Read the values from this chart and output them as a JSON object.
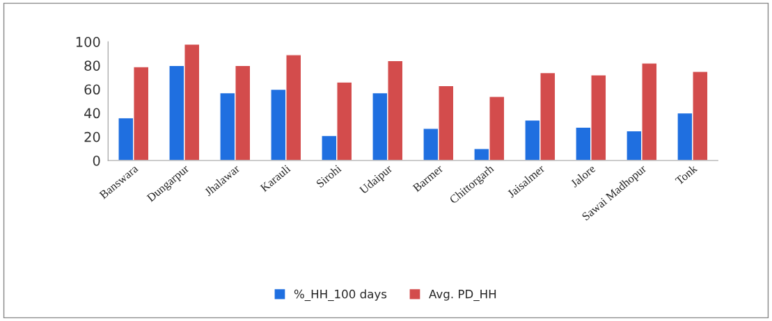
{
  "chart_data": {
    "type": "bar",
    "categories": [
      "Banswara",
      "Dungarpur",
      "Jhalawar",
      "Karauli",
      "Sirohi",
      "Udaipur",
      "Barmer",
      "Chittorgarh",
      "Jaisalmer",
      "Jalore",
      "Sawai Madhopur",
      "Tonk"
    ],
    "series": [
      {
        "name": "%_HH_100 days",
        "color": "#1f6fe0",
        "values": [
          36,
          80,
          57,
          60,
          21,
          57,
          27,
          10,
          34,
          28,
          25,
          40
        ]
      },
      {
        "name": "Avg. PD_HH",
        "color": "#d34c4c",
        "values": [
          79,
          98,
          80,
          89,
          66,
          84,
          63,
          54,
          74,
          72,
          82,
          75
        ]
      }
    ],
    "ylim": [
      0,
      100
    ],
    "yticks": [
      0,
      20,
      40,
      60,
      80,
      100
    ],
    "grid": false,
    "legend": "bottom"
  }
}
